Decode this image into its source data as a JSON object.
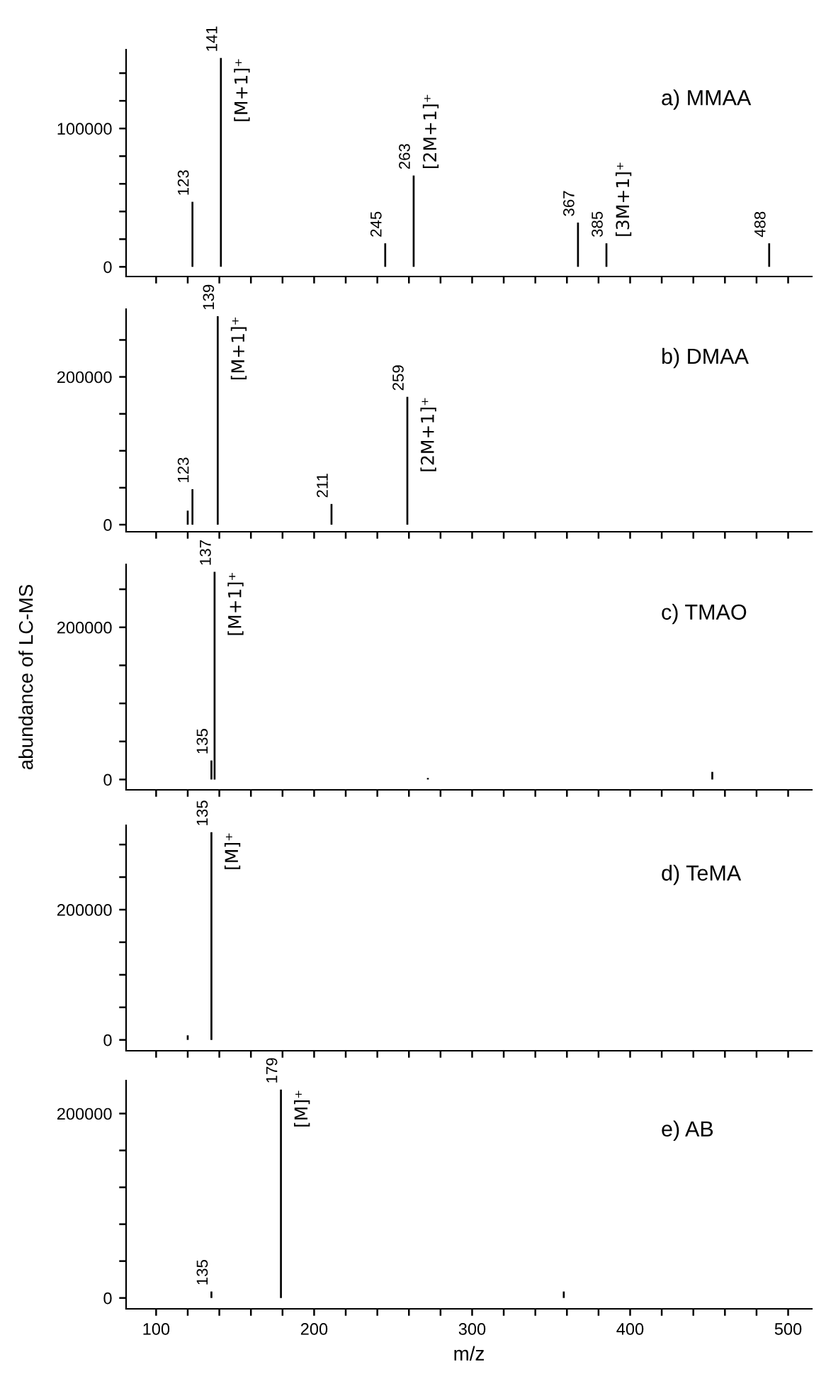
{
  "chart_data": [
    {
      "type": "bar",
      "title": "a) MMAA",
      "color": "#000000",
      "x": [
        123,
        141,
        245,
        263,
        367,
        385,
        488
      ],
      "values": [
        47000,
        151000,
        17000,
        66000,
        32000,
        17000,
        17000
      ],
      "xlim": [
        81,
        515
      ],
      "ylim": [
        -7000,
        157000
      ],
      "xticks": [
        100,
        {
          "value": 120,
          "label": null
        },
        {
          "value": 140,
          "label": null
        },
        {
          "value": 160,
          "label": null
        },
        {
          "value": 180,
          "label": null
        },
        200,
        {
          "value": 220,
          "label": null
        },
        {
          "value": 240,
          "label": null
        },
        {
          "value": 260,
          "label": null
        },
        {
          "value": 280,
          "label": null
        },
        300,
        {
          "value": 320,
          "label": null
        },
        {
          "value": 340,
          "label": null
        },
        {
          "value": 360,
          "label": null
        },
        {
          "value": 380,
          "label": null
        },
        400,
        {
          "value": 420,
          "label": null
        },
        {
          "value": 440,
          "label": null
        },
        {
          "value": 460,
          "label": null
        },
        {
          "value": 480,
          "label": null
        },
        500
      ],
      "yticks": [
        0,
        {
          "value": 20000,
          "label": null
        },
        {
          "value": 40000,
          "label": null
        },
        {
          "value": 60000,
          "label": null
        },
        {
          "value": 80000,
          "label": null
        },
        100000,
        {
          "value": 120000,
          "label": null
        },
        {
          "value": 140000,
          "label": null
        }
      ],
      "tick_labels": "y",
      "annotations": [
        {
          "text": "123",
          "x": 123,
          "y": 47000
        },
        {
          "text": "141",
          "x": 141,
          "y": 151000
        },
        {
          "text": "245",
          "x": 245,
          "y": 17000
        },
        {
          "text": "263",
          "x": 263,
          "y": 66000
        },
        {
          "text": "367",
          "x": 367,
          "y": 32000
        },
        {
          "text": "385",
          "x": 385,
          "y": 17000
        },
        {
          "text": "488",
          "x": 488,
          "y": 17000
        },
        {
          "text": "[M+1]⁺",
          "x": 141,
          "y": 151000
        },
        {
          "text": "[2M+1]⁺",
          "x": 263,
          "y": 66000
        },
        {
          "text": "[3M+1]⁺",
          "x": 385,
          "y": 17000
        }
      ]
    },
    {
      "type": "bar",
      "title": "b) DMAA",
      "color": "#000000",
      "x": [
        120,
        123,
        139,
        211,
        259
      ],
      "values": [
        19000,
        48000,
        282000,
        28000,
        173000
      ],
      "xlim": [
        81,
        515
      ],
      "ylim": [
        -9600,
        291700
      ],
      "xticks": [
        100,
        {
          "value": 120,
          "label": null
        },
        {
          "value": 140,
          "label": null
        },
        {
          "value": 160,
          "label": null
        },
        {
          "value": 180,
          "label": null
        },
        200,
        {
          "value": 220,
          "label": null
        },
        {
          "value": 240,
          "label": null
        },
        {
          "value": 260,
          "label": null
        },
        {
          "value": 280,
          "label": null
        },
        300,
        {
          "value": 320,
          "label": null
        },
        {
          "value": 340,
          "label": null
        },
        {
          "value": 360,
          "label": null
        },
        {
          "value": 380,
          "label": null
        },
        400,
        {
          "value": 420,
          "label": null
        },
        {
          "value": 440,
          "label": null
        },
        {
          "value": 460,
          "label": null
        },
        {
          "value": 480,
          "label": null
        },
        500
      ],
      "yticks": [
        0,
        {
          "value": 50000,
          "label": null
        },
        {
          "value": 100000,
          "label": null
        },
        {
          "value": 150000,
          "label": null
        },
        200000,
        {
          "value": 250000,
          "label": null
        }
      ],
      "tick_labels": "y",
      "annotations": [
        {
          "text": "123",
          "x": 123,
          "y": 48000
        },
        {
          "text": "139",
          "x": 139,
          "y": 282000
        },
        {
          "text": "211",
          "x": 211,
          "y": 28000
        },
        {
          "text": "259",
          "x": 259,
          "y": 173000
        },
        {
          "text": "[M+1]⁺",
          "x": 139,
          "y": 282000
        },
        {
          "text": "[2M+1]⁺",
          "x": 259,
          "y": 173000
        }
      ]
    },
    {
      "type": "bar",
      "title": "c) TMAO",
      "ylabel": "abundance of LC-MS",
      "color": "#000000",
      "x": [
        135,
        137,
        272,
        452
      ],
      "values": [
        25000,
        273000,
        2000,
        10000
      ],
      "xlim": [
        81,
        515
      ],
      "ylim": [
        -13600,
        282700
      ],
      "xticks": [
        100,
        {
          "value": 120,
          "label": null
        },
        {
          "value": 140,
          "label": null
        },
        {
          "value": 160,
          "label": null
        },
        {
          "value": 180,
          "label": null
        },
        200,
        {
          "value": 220,
          "label": null
        },
        {
          "value": 240,
          "label": null
        },
        {
          "value": 260,
          "label": null
        },
        {
          "value": 280,
          "label": null
        },
        300,
        {
          "value": 320,
          "label": null
        },
        {
          "value": 340,
          "label": null
        },
        {
          "value": 360,
          "label": null
        },
        {
          "value": 380,
          "label": null
        },
        400,
        {
          "value": 420,
          "label": null
        },
        {
          "value": 440,
          "label": null
        },
        {
          "value": 460,
          "label": null
        },
        {
          "value": 480,
          "label": null
        },
        500
      ],
      "yticks": [
        0,
        {
          "value": 50000,
          "label": null
        },
        {
          "value": 100000,
          "label": null
        },
        {
          "value": 150000,
          "label": null
        },
        200000,
        {
          "value": 250000,
          "label": null
        }
      ],
      "tick_labels": "y",
      "annotations": [
        {
          "text": "135",
          "x": 135,
          "y": 25000
        },
        {
          "text": "137",
          "x": 137,
          "y": 273000
        },
        {
          "text": "[M+1]⁺",
          "x": 137,
          "y": 273000
        }
      ]
    },
    {
      "type": "bar",
      "title": "d) TeMA",
      "color": "#000000",
      "x": [
        120,
        135
      ],
      "values": [
        7000,
        319000
      ],
      "xlim": [
        81,
        515
      ],
      "ylim": [
        -16700,
        329600
      ],
      "xticks": [
        100,
        {
          "value": 120,
          "label": null
        },
        {
          "value": 140,
          "label": null
        },
        {
          "value": 160,
          "label": null
        },
        {
          "value": 180,
          "label": null
        },
        200,
        {
          "value": 220,
          "label": null
        },
        {
          "value": 240,
          "label": null
        },
        {
          "value": 260,
          "label": null
        },
        {
          "value": 280,
          "label": null
        },
        300,
        {
          "value": 320,
          "label": null
        },
        {
          "value": 340,
          "label": null
        },
        {
          "value": 360,
          "label": null
        },
        {
          "value": 380,
          "label": null
        },
        400,
        {
          "value": 420,
          "label": null
        },
        {
          "value": 440,
          "label": null
        },
        {
          "value": 460,
          "label": null
        },
        {
          "value": 480,
          "label": null
        },
        500
      ],
      "yticks": [
        0,
        {
          "value": 50000,
          "label": null
        },
        {
          "value": 100000,
          "label": null
        },
        {
          "value": 150000,
          "label": null
        },
        200000,
        {
          "value": 250000,
          "label": null
        },
        {
          "value": 300000,
          "label": null
        }
      ],
      "tick_labels": "y",
      "annotations": [
        {
          "text": "135",
          "x": 135,
          "y": 319000
        },
        {
          "text": "[M]⁺",
          "x": 135,
          "y": 319000
        }
      ]
    },
    {
      "type": "bar",
      "title": "e) AB",
      "xlabel": "m/z",
      "color": "#000000",
      "x": [
        135,
        179,
        358
      ],
      "values": [
        7000,
        226000,
        7000
      ],
      "xlim": [
        81,
        515
      ],
      "ylim": [
        -11800,
        235800
      ],
      "xticks": [
        100,
        {
          "value": 120,
          "label": null
        },
        {
          "value": 140,
          "label": null
        },
        {
          "value": 160,
          "label": null
        },
        {
          "value": 180,
          "label": null
        },
        200,
        {
          "value": 220,
          "label": null
        },
        {
          "value": 240,
          "label": null
        },
        {
          "value": 260,
          "label": null
        },
        {
          "value": 280,
          "label": null
        },
        300,
        {
          "value": 320,
          "label": null
        },
        {
          "value": 340,
          "label": null
        },
        {
          "value": 360,
          "label": null
        },
        {
          "value": 380,
          "label": null
        },
        400,
        {
          "value": 420,
          "label": null
        },
        {
          "value": 440,
          "label": null
        },
        {
          "value": 460,
          "label": null
        },
        {
          "value": 480,
          "label": null
        },
        500
      ],
      "yticks": [
        0,
        {
          "value": 40000,
          "label": null
        },
        {
          "value": 80000,
          "label": null
        },
        {
          "value": 120000,
          "label": null
        },
        {
          "value": 160000,
          "label": null
        },
        200000
      ],
      "annotations": [
        {
          "text": "135",
          "x": 135,
          "y": 7000
        },
        {
          "text": "179",
          "x": 179,
          "y": 226000
        },
        {
          "text": "[M]⁺",
          "x": 179,
          "y": 226000
        }
      ]
    }
  ]
}
